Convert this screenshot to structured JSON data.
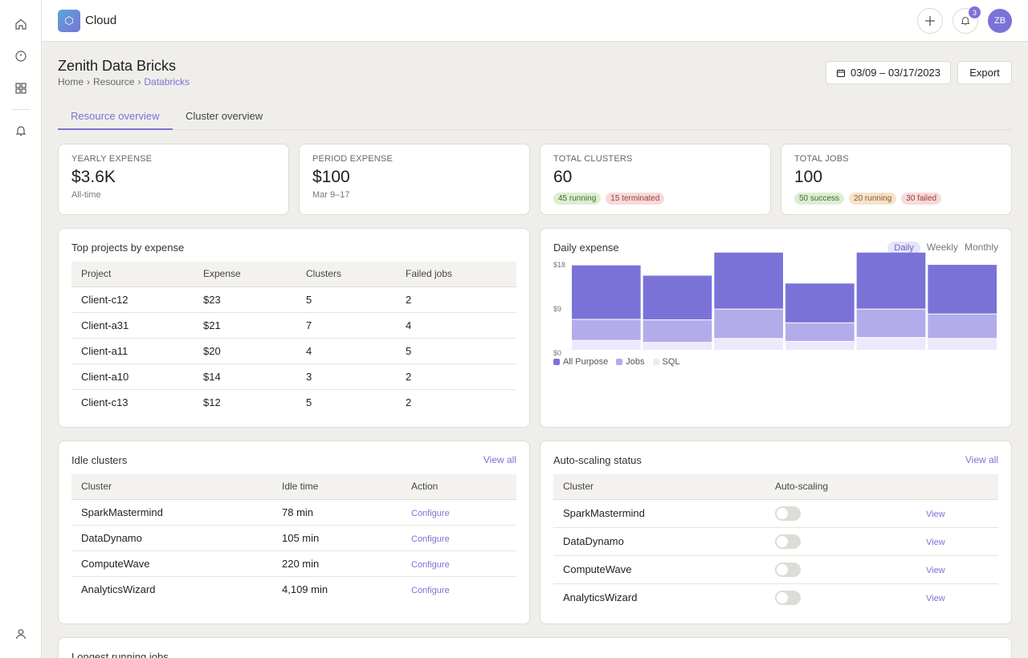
{
  "app": {
    "title": "Cloud",
    "logo_icon": "hexagon-icon",
    "notifications_count": "3",
    "avatar_initials": "ZB"
  },
  "page": {
    "title": "Zenith Data Bricks",
    "breadcrumb": [
      "Home",
      "Resource",
      "Databricks"
    ],
    "breadcrumb_sep": "›",
    "date_range": "03/09 – 03/17/2023",
    "export_label": "Export"
  },
  "tabs": [
    {
      "label": "Resource overview",
      "active": true
    },
    {
      "label": "Cluster overview",
      "active": false
    }
  ],
  "stats": {
    "yearly": {
      "label": "Yearly expense",
      "value": "$3.6K",
      "sub": "All-time"
    },
    "period": {
      "label": "Period expense",
      "value": "$100",
      "sub": "Mar 9–17"
    },
    "clusters": {
      "label": "Total clusters",
      "value": "60",
      "pills": [
        "45 running",
        "15 terminated"
      ]
    },
    "jobs": {
      "label": "Total jobs",
      "value": "100",
      "pills": [
        "50 success",
        "20 running",
        "30 failed"
      ]
    }
  },
  "top_projects": {
    "title": "Top projects by expense",
    "columns": [
      "Project",
      "Expense",
      "Clusters",
      "Failed jobs"
    ],
    "rows": [
      [
        "Client-c12",
        "$23",
        "5",
        "2"
      ],
      [
        "Client-a31",
        "$21",
        "7",
        "4"
      ],
      [
        "Client-a11",
        "$20",
        "4",
        "5"
      ],
      [
        "Client-a10",
        "$14",
        "3",
        "2"
      ],
      [
        "Client-c13",
        "$12",
        "5",
        "2"
      ]
    ]
  },
  "daily_expense": {
    "title": "Daily expense",
    "periods": [
      "Daily",
      "Weekly",
      "Monthly"
    ],
    "active_period": "Daily"
  },
  "chart_data": {
    "type": "bar",
    "stacked": true,
    "categories": [
      "",
      "",
      "",
      "",
      "",
      ""
    ],
    "series": [
      {
        "name": "SQL",
        "values": [
          2.0,
          1.6,
          2.4,
          1.8,
          2.6,
          2.4
        ],
        "color": "#ebe9fb"
      },
      {
        "name": "Jobs",
        "values": [
          4.3,
          4.6,
          6.0,
          3.8,
          5.8,
          5.0
        ],
        "color": "#b3aceb"
      },
      {
        "name": "All Purpose",
        "values": [
          11.1,
          9.1,
          11.6,
          8.1,
          11.6,
          10.1
        ],
        "color": "#7b72d8"
      }
    ],
    "ylim": [
      0,
      18
    ],
    "yticks": [
      "$18",
      "$9",
      "$0"
    ],
    "legend_position": "bottom-left",
    "grid": false
  },
  "idle_clusters": {
    "title": "Idle clusters",
    "view_all": "View all",
    "columns": [
      "Cluster",
      "Idle time",
      "Action"
    ],
    "rows": [
      {
        "cluster": "SparkMastermind",
        "idle": "78 min",
        "warn": false,
        "action": "Configure"
      },
      {
        "cluster": "DataDynamo",
        "idle": "105 min",
        "warn": false,
        "action": "Configure"
      },
      {
        "cluster": "ComputeWave",
        "idle": "220 min",
        "warn": true,
        "action": "Configure"
      },
      {
        "cluster": "AnalyticsWizard",
        "idle": "4,109 min",
        "warn": true,
        "action": "Configure"
      }
    ]
  },
  "autoscaling": {
    "title": "Auto-scaling status",
    "view_all": "View all",
    "columns": [
      "Cluster",
      "Auto-scaling",
      ""
    ],
    "rows": [
      {
        "cluster": "SparkMastermind",
        "enabled": false,
        "action": "View"
      },
      {
        "cluster": "DataDynamo",
        "enabled": false,
        "action": "View"
      },
      {
        "cluster": "ComputeWave",
        "enabled": false,
        "action": "View"
      },
      {
        "cluster": "AnalyticsWizard",
        "enabled": false,
        "action": "View"
      }
    ]
  },
  "longest_jobs": {
    "title": "Longest running jobs"
  },
  "colors": {
    "accent": "#7b72d8",
    "danger": "#b03a3a",
    "success_bg": "#dcefd2",
    "danger_bg": "#f6dbdb",
    "warning_bg": "#f6e3cc"
  },
  "icons": {
    "rail": [
      "home-icon",
      "compass-icon",
      "grid-icon",
      "bell-icon",
      "user-icon"
    ]
  }
}
